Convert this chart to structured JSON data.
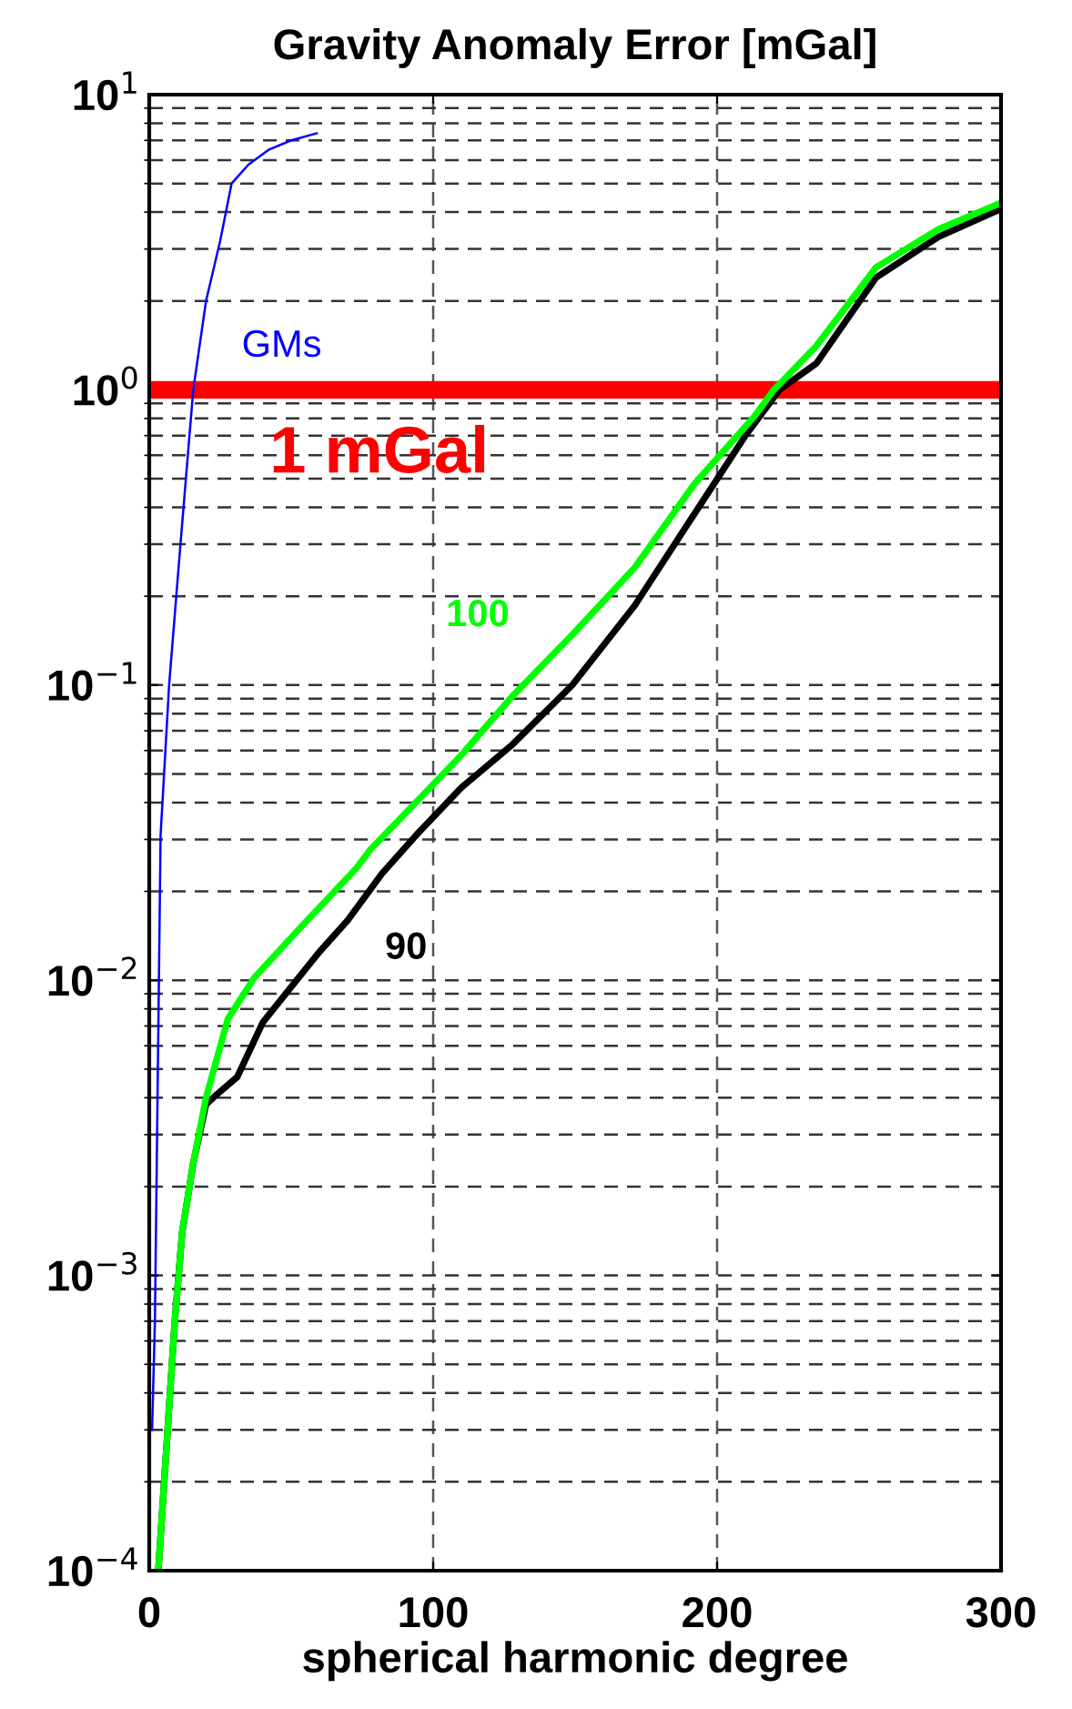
{
  "chart_data": {
    "type": "line",
    "title": "Gravity Anomaly Error [mGal]",
    "xlabel": "spherical harmonic degree",
    "log": "y",
    "xlim": [
      0,
      300
    ],
    "xticks": [
      0,
      100,
      200,
      300
    ],
    "ylim": [
      0.0001,
      10
    ],
    "yticks": [
      {
        "value": 0.0001,
        "label": "10$^{−4}$"
      },
      {
        "value": 0.001,
        "label": "10$^{−3}$"
      },
      {
        "value": 0.01,
        "label": "10$^{−2}$"
      },
      {
        "value": 0.1,
        "label": "10$^{−1}$"
      },
      {
        "value": 1,
        "label": "10$^{0}$"
      },
      {
        "value": 10,
        "label": "10$^{1}$"
      }
    ],
    "grid": true,
    "series": [
      {
        "name": "GMs",
        "color": "#0000ff",
        "x": [
          1,
          2,
          4,
          7,
          11,
          15.5,
          20,
          25,
          29,
          35,
          42,
          50,
          59
        ],
        "values": [
          0.0003,
          0.0007,
          0.031,
          0.1,
          0.3,
          1,
          2,
          3.2,
          5,
          5.8,
          6.5,
          7.0,
          7.4
        ]
      },
      {
        "name": "90",
        "color": "#000000",
        "x": [
          3.2,
          9,
          11.6,
          15.5,
          20,
          25,
          31,
          40,
          50,
          60,
          70,
          82,
          94,
          110,
          128,
          149,
          171,
          192,
          210,
          222,
          235,
          256,
          278,
          300
        ],
        "values": [
          0.0001,
          0.0007,
          0.0014,
          0.0024,
          0.0038,
          0.0042,
          0.0047,
          0.0072,
          0.0095,
          0.0125,
          0.016,
          0.023,
          0.031,
          0.045,
          0.063,
          0.1,
          0.186,
          0.38,
          0.7,
          1,
          1.23,
          2.4,
          3.3,
          4.1
        ]
      },
      {
        "name": "100",
        "color": "#00ff00",
        "x": [
          3.2,
          9,
          11.6,
          15.5,
          20,
          27.7,
          37,
          53,
          73,
          78,
          97,
          110,
          127.6,
          149,
          171,
          192,
          213,
          220,
          235,
          256,
          278,
          300
        ],
        "values": [
          0.0001,
          0.0007,
          0.0014,
          0.0024,
          0.004,
          0.0074,
          0.0102,
          0.015,
          0.024,
          0.0278,
          0.043,
          0.058,
          0.091,
          0.148,
          0.25,
          0.48,
          0.81,
          1,
          1.41,
          2.6,
          3.5,
          4.3
        ]
      }
    ],
    "ref_lines": [
      {
        "axis": "y",
        "value": 1,
        "color": "#ff0000",
        "label": "1 mGal"
      }
    ]
  }
}
